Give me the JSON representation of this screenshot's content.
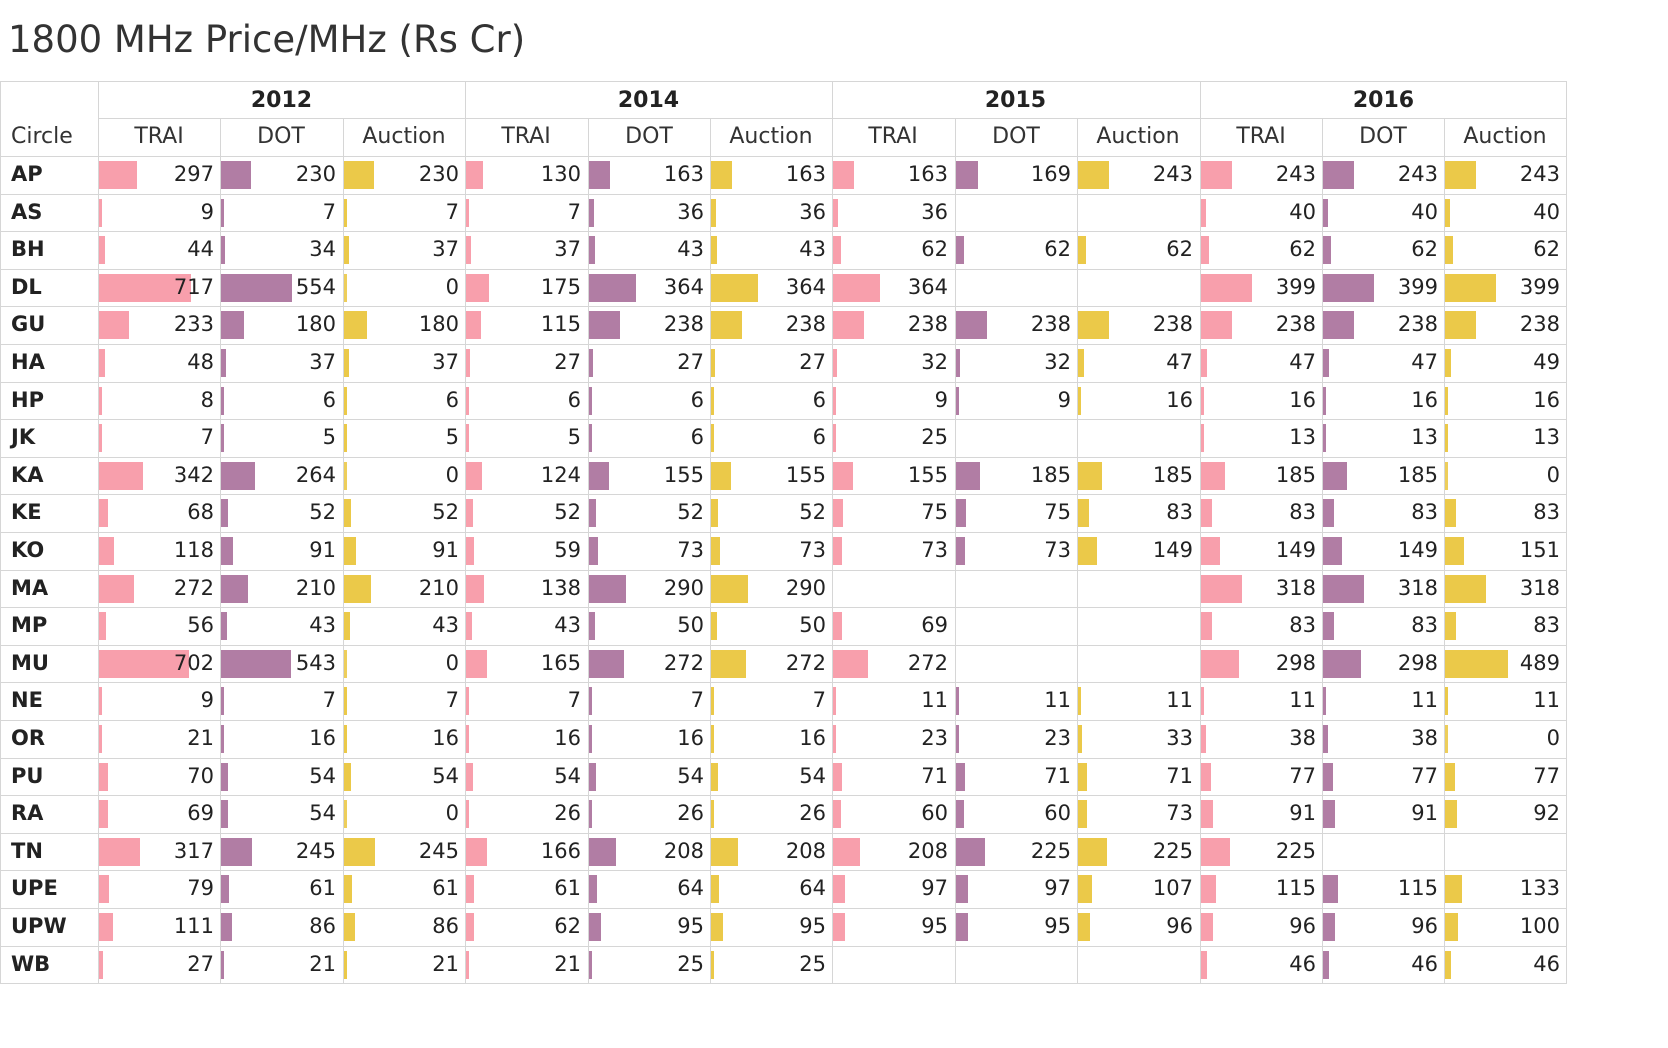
{
  "title": "1800 MHz Price/MHz (Rs Cr)",
  "colors": {
    "TRAI": "#f89fac",
    "DOT": "#b17da4",
    "Auction": "#ebc949",
    "gridline": "#d6d6d6"
  },
  "header": {
    "circle_label": "Circle"
  },
  "chart_data": {
    "type": "table",
    "title": "1800 MHz Price/MHz (Rs Cr)",
    "years": [
      "2012",
      "2014",
      "2015",
      "2016"
    ],
    "metrics": [
      "TRAI",
      "DOT",
      "Auction"
    ],
    "bar_scale_max": 717,
    "circles": [
      "AP",
      "AS",
      "BH",
      "DL",
      "GU",
      "HA",
      "HP",
      "JK",
      "KA",
      "KE",
      "KO",
      "MA",
      "MP",
      "MU",
      "NE",
      "OR",
      "PU",
      "RA",
      "TN",
      "UPE",
      "UPW",
      "WB"
    ],
    "rows": [
      {
        "circle": "AP",
        "values": [
          297,
          230,
          230,
          130,
          163,
          163,
          163,
          169,
          243,
          243,
          243,
          243
        ]
      },
      {
        "circle": "AS",
        "values": [
          9,
          7,
          7,
          7,
          36,
          36,
          36,
          null,
          null,
          40,
          40,
          40
        ]
      },
      {
        "circle": "BH",
        "values": [
          44,
          34,
          37,
          37,
          43,
          43,
          62,
          62,
          62,
          62,
          62,
          62
        ]
      },
      {
        "circle": "DL",
        "values": [
          717,
          554,
          0,
          175,
          364,
          364,
          364,
          null,
          null,
          399,
          399,
          399
        ]
      },
      {
        "circle": "GU",
        "values": [
          233,
          180,
          180,
          115,
          238,
          238,
          238,
          238,
          238,
          238,
          238,
          238
        ]
      },
      {
        "circle": "HA",
        "values": [
          48,
          37,
          37,
          27,
          27,
          27,
          32,
          32,
          47,
          47,
          47,
          49
        ]
      },
      {
        "circle": "HP",
        "values": [
          8,
          6,
          6,
          6,
          6,
          6,
          9,
          9,
          16,
          16,
          16,
          16
        ]
      },
      {
        "circle": "JK",
        "values": [
          7,
          5,
          5,
          5,
          6,
          6,
          25,
          null,
          null,
          13,
          13,
          13
        ]
      },
      {
        "circle": "KA",
        "values": [
          342,
          264,
          0,
          124,
          155,
          155,
          155,
          185,
          185,
          185,
          185,
          0
        ]
      },
      {
        "circle": "KE",
        "values": [
          68,
          52,
          52,
          52,
          52,
          52,
          75,
          75,
          83,
          83,
          83,
          83
        ]
      },
      {
        "circle": "KO",
        "values": [
          118,
          91,
          91,
          59,
          73,
          73,
          73,
          73,
          149,
          149,
          149,
          151
        ]
      },
      {
        "circle": "MA",
        "values": [
          272,
          210,
          210,
          138,
          290,
          290,
          null,
          null,
          null,
          318,
          318,
          318
        ]
      },
      {
        "circle": "MP",
        "values": [
          56,
          43,
          43,
          43,
          50,
          50,
          69,
          null,
          null,
          83,
          83,
          83
        ]
      },
      {
        "circle": "MU",
        "values": [
          702,
          543,
          0,
          165,
          272,
          272,
          272,
          null,
          null,
          298,
          298,
          489
        ]
      },
      {
        "circle": "NE",
        "values": [
          9,
          7,
          7,
          7,
          7,
          7,
          11,
          11,
          11,
          11,
          11,
          11
        ]
      },
      {
        "circle": "OR",
        "values": [
          21,
          16,
          16,
          16,
          16,
          16,
          23,
          23,
          33,
          38,
          38,
          0
        ]
      },
      {
        "circle": "PU",
        "values": [
          70,
          54,
          54,
          54,
          54,
          54,
          71,
          71,
          71,
          77,
          77,
          77
        ]
      },
      {
        "circle": "RA",
        "values": [
          69,
          54,
          0,
          26,
          26,
          26,
          60,
          60,
          73,
          91,
          91,
          92
        ]
      },
      {
        "circle": "TN",
        "values": [
          317,
          245,
          245,
          166,
          208,
          208,
          208,
          225,
          225,
          225,
          null,
          null
        ]
      },
      {
        "circle": "UPE",
        "values": [
          79,
          61,
          61,
          61,
          64,
          64,
          97,
          97,
          107,
          115,
          115,
          133
        ]
      },
      {
        "circle": "UPW",
        "values": [
          111,
          86,
          86,
          62,
          95,
          95,
          95,
          95,
          96,
          96,
          96,
          100
        ]
      },
      {
        "circle": "WB",
        "values": [
          27,
          21,
          21,
          21,
          25,
          25,
          null,
          null,
          null,
          46,
          46,
          46
        ]
      }
    ]
  }
}
